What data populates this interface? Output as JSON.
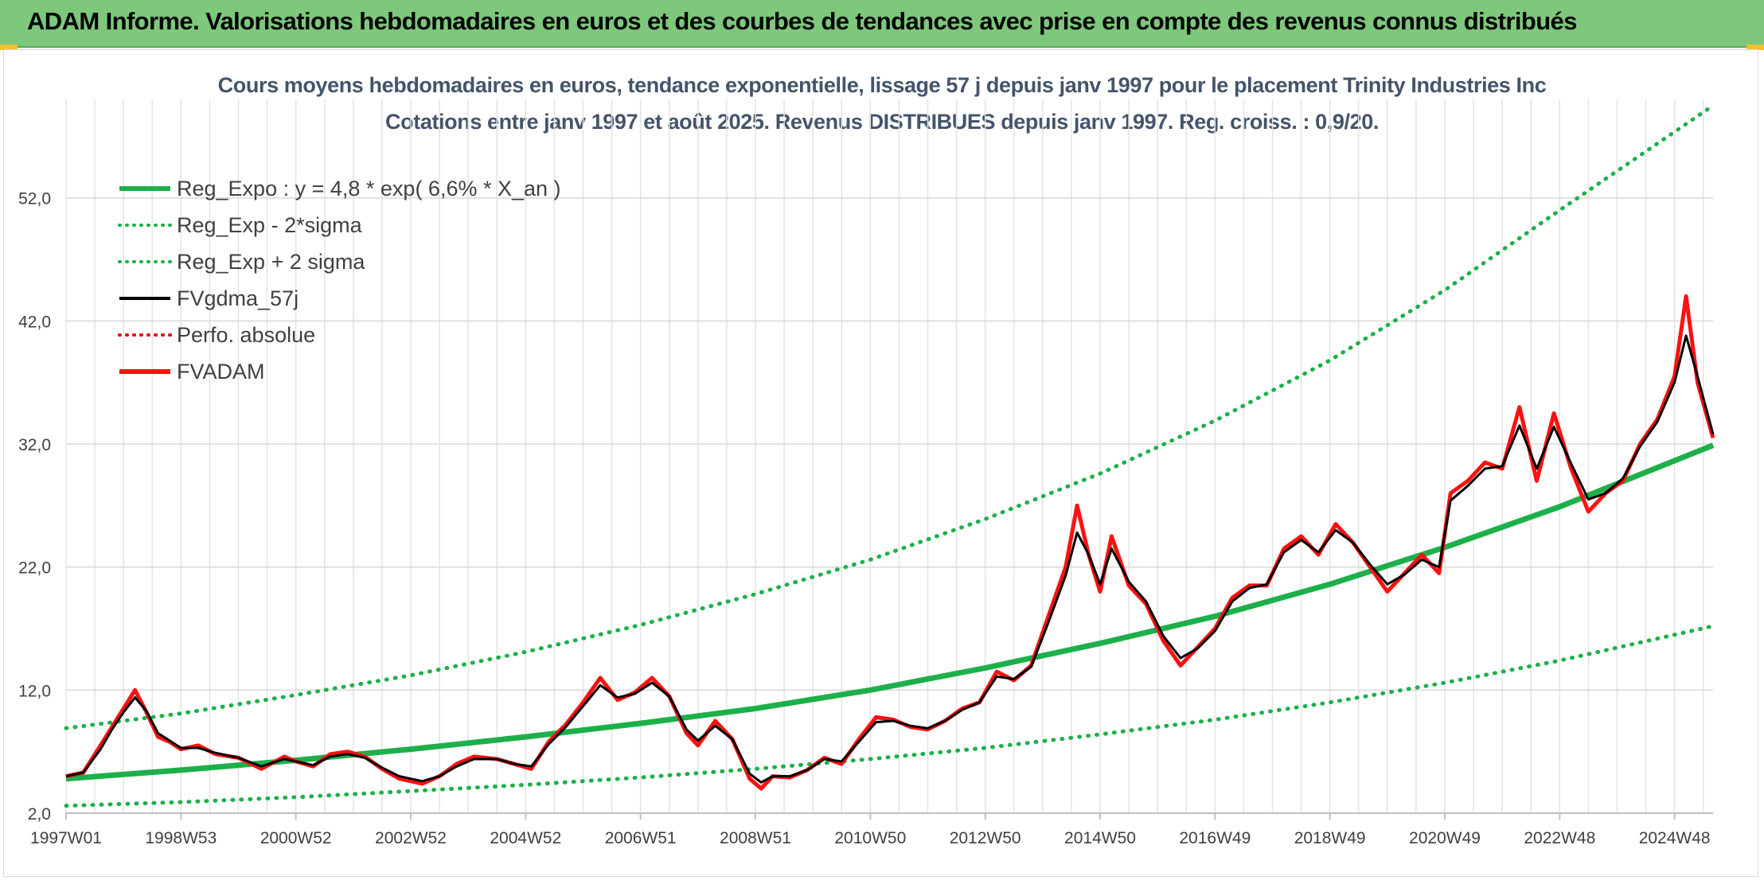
{
  "banner": {
    "title": "ADAM Informe. Valorisations hebdomadaires en euros et des courbes de tendances avec prise en compte des revenus connus distribués"
  },
  "colors": {
    "banner_bg": "#7dc87a",
    "reg_expo": "#1db04a",
    "sigma": "#1db04a",
    "fvgdma": "#000000",
    "perfo": "#e00000",
    "fvadam": "#ff1010",
    "title_text": "#44546a"
  },
  "chart_data": {
    "type": "line",
    "title": "Cours moyens hebdomadaires en euros, tendance exponentielle, lissage 57 j depuis janv 1997 pour le placement Trinity Industries Inc",
    "subtitle": "Cotations entre janv 1997 et août 2025. Revenus DISTRIBUES depuis janv 1997. Reg. croiss. : 0,9/20.",
    "xlabel": "",
    "ylabel": "",
    "x_range": [
      1997.0,
      2025.67
    ],
    "ylim": [
      2,
      60
    ],
    "y_ticks": [
      "2,0",
      "12,0",
      "22,0",
      "32,0",
      "42,0",
      "52,0"
    ],
    "y_tick_values": [
      2,
      12,
      22,
      32,
      42,
      52
    ],
    "x_ticks": [
      {
        "label": "1997W01",
        "x": 1997.0
      },
      {
        "label": "1998W53",
        "x": 1999.0
      },
      {
        "label": "2000W52",
        "x": 2001.0
      },
      {
        "label": "2002W52",
        "x": 2003.0
      },
      {
        "label": "2004W52",
        "x": 2005.0
      },
      {
        "label": "2006W51",
        "x": 2007.0
      },
      {
        "label": "2008W51",
        "x": 2009.0
      },
      {
        "label": "2010W50",
        "x": 2011.0
      },
      {
        "label": "2012W50",
        "x": 2013.0
      },
      {
        "label": "2014W50",
        "x": 2015.0
      },
      {
        "label": "2016W49",
        "x": 2017.0
      },
      {
        "label": "2018W49",
        "x": 2019.0
      },
      {
        "label": "2020W49",
        "x": 2021.0
      },
      {
        "label": "2022W48",
        "x": 2023.0
      },
      {
        "label": "2024W48",
        "x": 2025.0
      }
    ],
    "grid": true,
    "legend_position": "top-left",
    "legend": [
      {
        "label": "Reg_Expo : y = 4,8 * exp( 6,6% *  X_an )",
        "style": "solid-thick",
        "color": "#1db04a"
      },
      {
        "label": "Reg_Exp - 2*sigma",
        "style": "dotted",
        "color": "#1db04a"
      },
      {
        "label": "Reg_Exp + 2 sigma",
        "style": "dotted",
        "color": "#1db04a"
      },
      {
        "label": "FVgdma_57j",
        "style": "solid",
        "color": "#000000"
      },
      {
        "label": "Perfo. absolue",
        "style": "dotted",
        "color": "#e00000"
      },
      {
        "label": "FVADAM",
        "style": "solid-thick",
        "color": "#ff1010"
      }
    ],
    "trend": {
      "name": "Reg_Expo : y = 4,8 * exp( 6,6% *  X_an )",
      "x": [
        1997.0,
        1999.0,
        2001.0,
        2003.0,
        2005.0,
        2007.0,
        2009.0,
        2011.0,
        2013.0,
        2015.0,
        2017.0,
        2019.0,
        2021.0,
        2023.0,
        2025.67
      ],
      "values": [
        4.8,
        5.5,
        6.3,
        7.2,
        8.2,
        9.3,
        10.5,
        12.0,
        13.8,
        15.8,
        18.0,
        20.6,
        23.6,
        26.9,
        31.9
      ]
    },
    "lower_band": {
      "name": "Reg_Exp - 2*sigma",
      "x": [
        1997.0,
        1999.0,
        2001.0,
        2003.0,
        2005.0,
        2007.0,
        2009.0,
        2011.0,
        2013.0,
        2015.0,
        2017.0,
        2019.0,
        2021.0,
        2023.0,
        2025.67
      ],
      "values": [
        2.6,
        2.9,
        3.3,
        3.8,
        4.3,
        4.9,
        5.6,
        6.4,
        7.3,
        8.4,
        9.6,
        11.0,
        12.6,
        14.4,
        17.2
      ]
    },
    "upper_band": {
      "name": "Reg_Exp + 2 sigma",
      "x": [
        1997.0,
        1999.0,
        2001.0,
        2003.0,
        2005.0,
        2007.0,
        2009.0,
        2011.0,
        2013.0,
        2015.0,
        2017.0,
        2019.0,
        2021.0,
        2023.0,
        2025.67
      ],
      "values": [
        8.9,
        10.1,
        11.6,
        13.2,
        15.1,
        17.3,
        19.8,
        22.6,
        25.9,
        29.6,
        33.9,
        38.8,
        44.5,
        51.0,
        59.5
      ]
    },
    "series": [
      {
        "name": "FVADAM",
        "x": [
          1997.0,
          1997.3,
          1997.6,
          1997.8,
          1998.0,
          1998.2,
          1998.4,
          1998.6,
          1998.8,
          1999.0,
          1999.3,
          1999.6,
          2000.0,
          2000.4,
          2000.8,
          2001.0,
          2001.3,
          2001.6,
          2001.9,
          2002.2,
          2002.5,
          2002.8,
          2003.2,
          2003.5,
          2003.8,
          2004.1,
          2004.5,
          2004.8,
          2005.1,
          2005.4,
          2005.7,
          2006.0,
          2006.3,
          2006.6,
          2006.9,
          2007.2,
          2007.5,
          2007.8,
          2008.0,
          2008.3,
          2008.6,
          2008.9,
          2009.1,
          2009.3,
          2009.6,
          2009.9,
          2010.2,
          2010.5,
          2010.8,
          2011.1,
          2011.4,
          2011.7,
          2012.0,
          2012.3,
          2012.6,
          2012.9,
          2013.2,
          2013.5,
          2013.8,
          2014.1,
          2014.4,
          2014.6,
          2014.8,
          2015.0,
          2015.2,
          2015.5,
          2015.8,
          2016.1,
          2016.4,
          2016.7,
          2017.0,
          2017.3,
          2017.6,
          2017.9,
          2018.2,
          2018.5,
          2018.8,
          2019.1,
          2019.4,
          2019.7,
          2020.0,
          2020.3,
          2020.6,
          2020.9,
          2021.1,
          2021.4,
          2021.7,
          2022.0,
          2022.3,
          2022.6,
          2022.9,
          2023.2,
          2023.5,
          2023.8,
          2024.1,
          2024.4,
          2024.7,
          2025.0,
          2025.2,
          2025.4,
          2025.67
        ],
        "values": [
          5.0,
          5.3,
          7.5,
          9.0,
          10.5,
          12.0,
          10.2,
          8.2,
          7.8,
          7.2,
          7.5,
          6.8,
          6.5,
          5.6,
          6.6,
          6.2,
          5.8,
          6.8,
          7.0,
          6.6,
          5.6,
          4.8,
          4.4,
          5.0,
          6.0,
          6.6,
          6.4,
          6.0,
          5.6,
          7.8,
          9.2,
          11.0,
          13.0,
          11.2,
          11.8,
          13.0,
          11.5,
          8.5,
          7.5,
          9.5,
          8.0,
          4.8,
          4.0,
          5.0,
          4.9,
          5.5,
          6.5,
          6.0,
          8.0,
          9.8,
          9.6,
          9.0,
          8.8,
          9.5,
          10.5,
          11.0,
          13.5,
          12.8,
          14.0,
          18.0,
          22.0,
          27.0,
          23.0,
          20.0,
          24.5,
          20.5,
          19.0,
          16.0,
          14.0,
          15.5,
          17.0,
          19.5,
          20.5,
          20.5,
          23.5,
          24.5,
          23.0,
          25.5,
          24.0,
          22.0,
          20.0,
          21.5,
          23.0,
          21.5,
          28.0,
          29.0,
          30.5,
          30.0,
          35.0,
          29.0,
          34.5,
          30.0,
          26.5,
          28.0,
          29.0,
          32.0,
          34.0,
          37.5,
          44.0,
          37.0,
          32.5
        ]
      },
      {
        "name": "FVgdma_57j",
        "x": [
          1997.0,
          1997.3,
          1997.6,
          1997.8,
          1998.0,
          1998.2,
          1998.4,
          1998.6,
          1998.8,
          1999.0,
          1999.3,
          1999.6,
          2000.0,
          2000.4,
          2000.8,
          2001.0,
          2001.3,
          2001.6,
          2001.9,
          2002.2,
          2002.5,
          2002.8,
          2003.2,
          2003.5,
          2003.8,
          2004.1,
          2004.5,
          2004.8,
          2005.1,
          2005.4,
          2005.7,
          2006.0,
          2006.3,
          2006.6,
          2006.9,
          2007.2,
          2007.5,
          2007.8,
          2008.0,
          2008.3,
          2008.6,
          2008.9,
          2009.1,
          2009.3,
          2009.6,
          2009.9,
          2010.2,
          2010.5,
          2010.8,
          2011.1,
          2011.4,
          2011.7,
          2012.0,
          2012.3,
          2012.6,
          2012.9,
          2013.2,
          2013.5,
          2013.8,
          2014.1,
          2014.4,
          2014.6,
          2014.8,
          2015.0,
          2015.2,
          2015.5,
          2015.8,
          2016.1,
          2016.4,
          2016.7,
          2017.0,
          2017.3,
          2017.6,
          2017.9,
          2018.2,
          2018.5,
          2018.8,
          2019.1,
          2019.4,
          2019.7,
          2020.0,
          2020.3,
          2020.6,
          2020.9,
          2021.1,
          2021.4,
          2021.7,
          2022.0,
          2022.3,
          2022.6,
          2022.9,
          2023.2,
          2023.5,
          2023.8,
          2024.1,
          2024.4,
          2024.7,
          2025.0,
          2025.2,
          2025.4,
          2025.67
        ],
        "values": [
          5.0,
          5.3,
          7.2,
          8.8,
          10.2,
          11.4,
          10.3,
          8.5,
          7.9,
          7.3,
          7.3,
          6.9,
          6.5,
          5.8,
          6.4,
          6.2,
          5.9,
          6.6,
          6.8,
          6.5,
          5.7,
          5.0,
          4.6,
          5.0,
          5.8,
          6.4,
          6.4,
          6.0,
          5.8,
          7.6,
          9.0,
          10.7,
          12.4,
          11.4,
          11.7,
          12.6,
          11.5,
          8.8,
          7.9,
          9.1,
          8.0,
          5.2,
          4.5,
          5.0,
          5.0,
          5.5,
          6.4,
          6.2,
          7.8,
          9.4,
          9.5,
          9.1,
          8.9,
          9.5,
          10.4,
          11.0,
          13.1,
          12.9,
          13.9,
          17.5,
          21.3,
          24.8,
          23.0,
          20.6,
          23.5,
          20.8,
          19.2,
          16.4,
          14.6,
          15.4,
          16.8,
          19.2,
          20.3,
          20.6,
          23.2,
          24.2,
          23.2,
          25.0,
          24.0,
          22.2,
          20.6,
          21.4,
          22.6,
          22.0,
          27.4,
          28.6,
          30.0,
          30.2,
          33.5,
          30.0,
          33.4,
          30.4,
          27.5,
          28.0,
          29.2,
          31.8,
          33.8,
          37.0,
          40.8,
          37.5,
          32.8
        ]
      }
    ]
  }
}
